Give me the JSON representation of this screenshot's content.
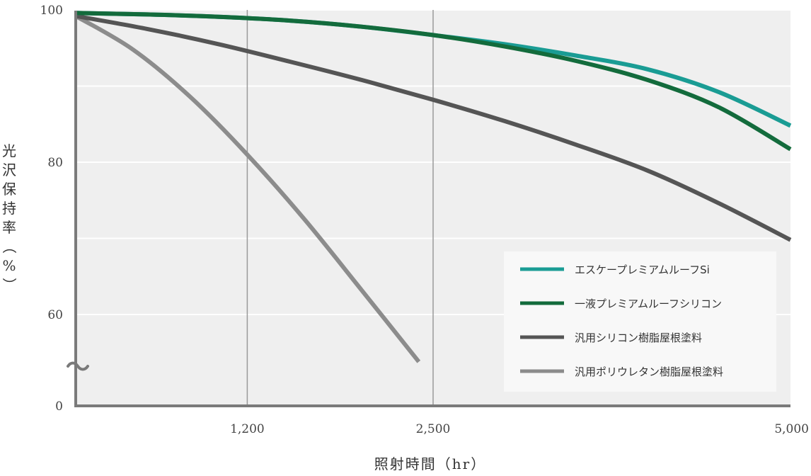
{
  "chart_data": {
    "type": "line",
    "title": "",
    "xlabel": "照射時間（hr）",
    "ylabel": "光沢保持率（%）",
    "xlim": [
      0,
      5000
    ],
    "ylim_display": [
      50,
      100
    ],
    "axis_break": true,
    "x_ticks": [
      {
        "value": 1200,
        "label": "1,200"
      },
      {
        "value": 2500,
        "label": "2,500"
      },
      {
        "value": 5000,
        "label": "5,000"
      }
    ],
    "y_ticks": [
      {
        "value": 100,
        "label": "100"
      },
      {
        "value": 80,
        "label": "80"
      },
      {
        "value": 60,
        "label": "60"
      },
      {
        "value": 0,
        "label": "0"
      }
    ],
    "vertical_gridlines_at": [
      1200,
      2500
    ],
    "horizontal_gridlines_at": [
      100,
      90,
      80,
      70,
      60
    ],
    "legend_position": "bottom-right",
    "series": [
      {
        "name": "エスケープレミアムルーフSi",
        "color": "#1a9c94",
        "x": [
          0,
          500,
          1000,
          1500,
          2000,
          2500,
          3000,
          3500,
          4000,
          4500,
          5000
        ],
        "values": [
          99.6,
          99.4,
          99.1,
          98.6,
          97.8,
          96.7,
          95.5,
          94.0,
          92.2,
          89.2,
          84.8
        ]
      },
      {
        "name": "一液プレミアムルーフシリコン",
        "color": "#136b3c",
        "x": [
          0,
          500,
          1000,
          1500,
          2000,
          2500,
          3000,
          3500,
          4000,
          4500,
          5000
        ],
        "values": [
          99.6,
          99.4,
          99.1,
          98.6,
          97.8,
          96.7,
          95.2,
          93.3,
          90.8,
          87.2,
          81.7
        ]
      },
      {
        "name": "汎用シリコン樹脂屋根塗料",
        "color": "#555555",
        "x": [
          0,
          500,
          1000,
          1500,
          2000,
          2500,
          3000,
          3500,
          4000,
          4500,
          5000
        ],
        "values": [
          99.2,
          97.5,
          95.5,
          93.2,
          90.8,
          88.2,
          85.4,
          82.3,
          78.9,
          74.6,
          69.8
        ]
      },
      {
        "name": "汎用ポリウレタン樹脂屋根塗料",
        "color": "#8c8c8c",
        "x": [
          0,
          400,
          800,
          1200,
          1600,
          2000,
          2400
        ],
        "values": [
          99.2,
          94.8,
          88.6,
          81.0,
          72.5,
          63.2,
          53.8
        ]
      }
    ]
  }
}
